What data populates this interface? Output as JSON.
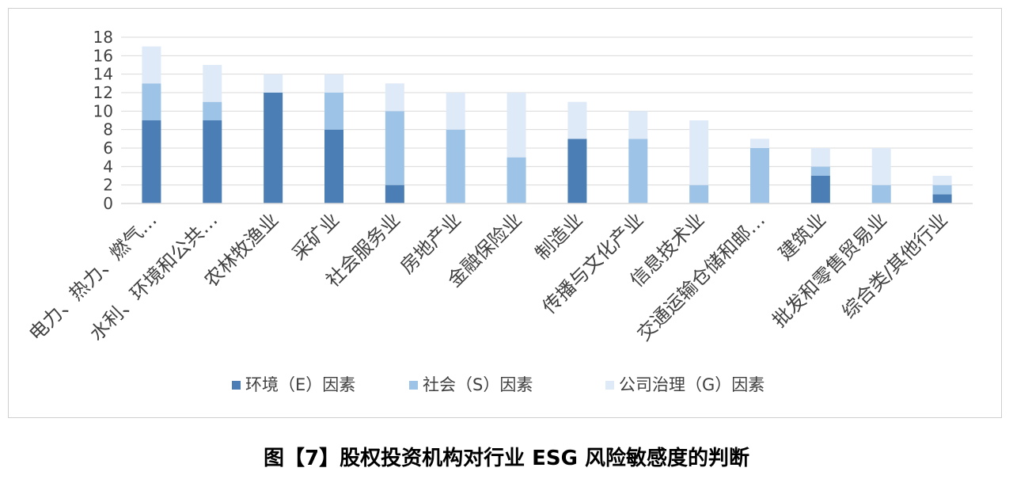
{
  "caption": "图【7】股权投资机构对行业 ESG 风险敏感度的判断",
  "colors": {
    "E": "#4a7eb4",
    "S": "#9dc3e6",
    "G": "#dfeaf8",
    "grid": "#d9d9d9",
    "axis": "#595959"
  },
  "chart_data": {
    "type": "bar",
    "stacked": true,
    "title": "",
    "xlabel": "",
    "ylabel": "",
    "ylim": [
      0,
      18
    ],
    "yticks": [
      0,
      2,
      4,
      6,
      8,
      10,
      12,
      14,
      16,
      18
    ],
    "grid": true,
    "legend_position": "bottom",
    "categories": [
      "电力、热力、燃气…",
      "水利、环境和公共…",
      "农林牧渔业",
      "采矿业",
      "社会服务业",
      "房地产业",
      "金融保险业",
      "制造业",
      "传播与文化产业",
      "信息技术业",
      "交通运输仓储和邮…",
      "建筑业",
      "批发和零售贸易业",
      "综合类/其他行业"
    ],
    "series": [
      {
        "name": "环境（E）因素",
        "values": [
          9,
          9,
          12,
          8,
          2,
          0,
          0,
          7,
          0,
          0,
          0,
          3,
          0,
          1
        ]
      },
      {
        "name": "社会（S）因素",
        "values": [
          4,
          2,
          0,
          4,
          8,
          8,
          5,
          0,
          7,
          2,
          6,
          1,
          2,
          1
        ]
      },
      {
        "name": "公司治理（G）因素",
        "values": [
          4,
          4,
          2,
          2,
          3,
          4,
          7,
          4,
          3,
          7,
          1,
          2,
          4,
          1
        ]
      }
    ]
  }
}
